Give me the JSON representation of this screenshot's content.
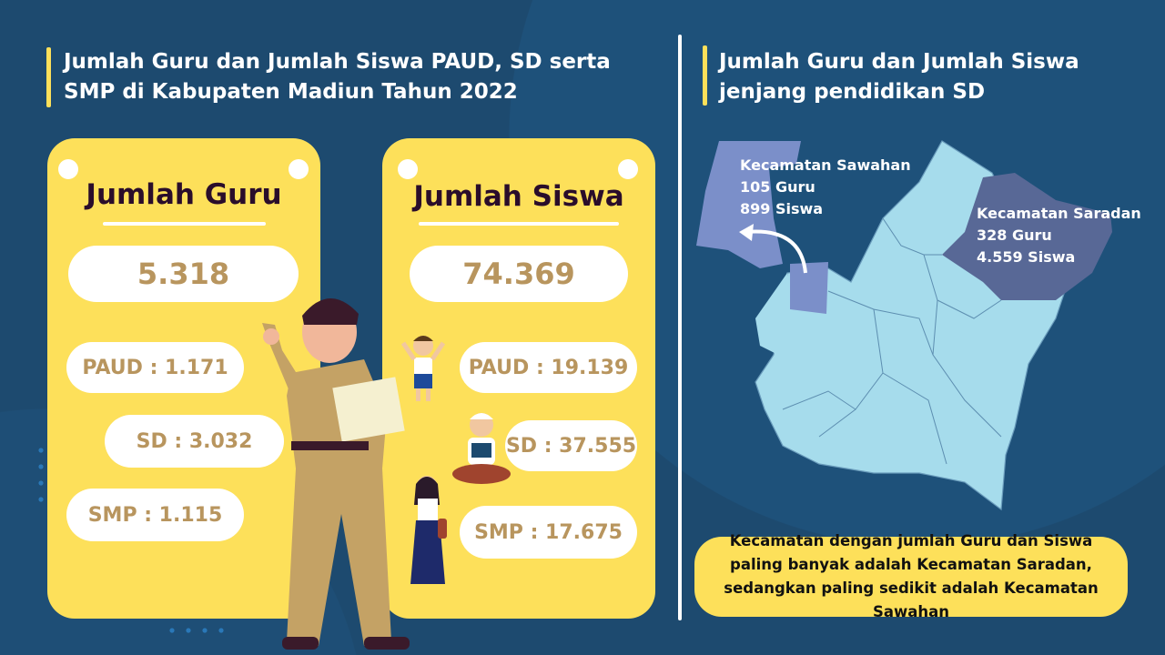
{
  "colors": {
    "background": "#1d4a6f",
    "accent": "#fde05a",
    "number_text": "#b8955e",
    "heading_text": "#2a0d2b",
    "map_base": "#a6dcec",
    "map_sawahan": "#7b8fc9",
    "map_saradan": "#586896"
  },
  "left_section": {
    "title": "Jumlah Guru dan Jumlah Siswa PAUD, SD serta SMP di Kabupaten Madiun Tahun 2022",
    "guru_card": {
      "heading": "Jumlah Guru",
      "total": "5.318",
      "items": [
        {
          "label": "PAUD : 1.171"
        },
        {
          "label": "SD : 3.032"
        },
        {
          "label": "SMP : 1.115"
        }
      ]
    },
    "siswa_card": {
      "heading": "Jumlah Siswa",
      "total": "74.369",
      "items": [
        {
          "label": "PAUD : 19.139"
        },
        {
          "label": "SD : 37.555"
        },
        {
          "label": "SMP : 17.675"
        }
      ]
    }
  },
  "right_section": {
    "title": "Jumlah Guru dan Jumlah Siswa jenjang pendidikan SD",
    "map_labels": [
      {
        "name": "Kecamatan Sawahan",
        "guru": "105 Guru",
        "siswa": "899 Siswa"
      },
      {
        "name": "Kecamatan Saradan",
        "guru": "328 Guru",
        "siswa": "4.559 Siswa"
      }
    ],
    "summary": "Kecamatan dengan jumlah Guru dan Siswa paling banyak adalah Kecamatan Saradan, sedangkan paling sedikit adalah Kecamatan Sawahan"
  }
}
